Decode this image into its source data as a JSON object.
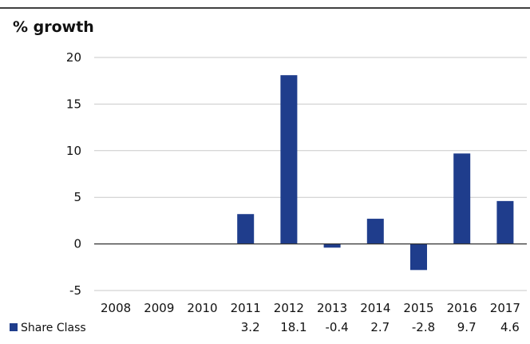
{
  "chart_data": {
    "type": "bar",
    "title": "% growth",
    "categories": [
      "2008",
      "2009",
      "2010",
      "2011",
      "2012",
      "2013",
      "2014",
      "2015",
      "2016",
      "2017"
    ],
    "series": [
      {
        "name": "Share Class",
        "values": [
          0,
          0,
          0,
          3.2,
          18.1,
          -0.4,
          2.7,
          -2.8,
          9.7,
          4.6
        ],
        "labels": [
          "",
          "",
          "",
          "3.2",
          "18.1",
          "-0.4",
          "2.7",
          "-2.8",
          "9.7",
          "4.6"
        ],
        "color": "#1f3d8c"
      }
    ],
    "ylim": [
      -5,
      20
    ],
    "yticks": [
      20,
      15,
      10,
      5,
      0,
      -5
    ],
    "xlabel": "",
    "ylabel": "",
    "grid": true,
    "legend": "bottom-left data table"
  },
  "colors": {
    "bar": "#1f3d8c",
    "grid": "#c9c9c9",
    "axis": "#333333",
    "text": "#111111",
    "topRule": "#000000"
  }
}
